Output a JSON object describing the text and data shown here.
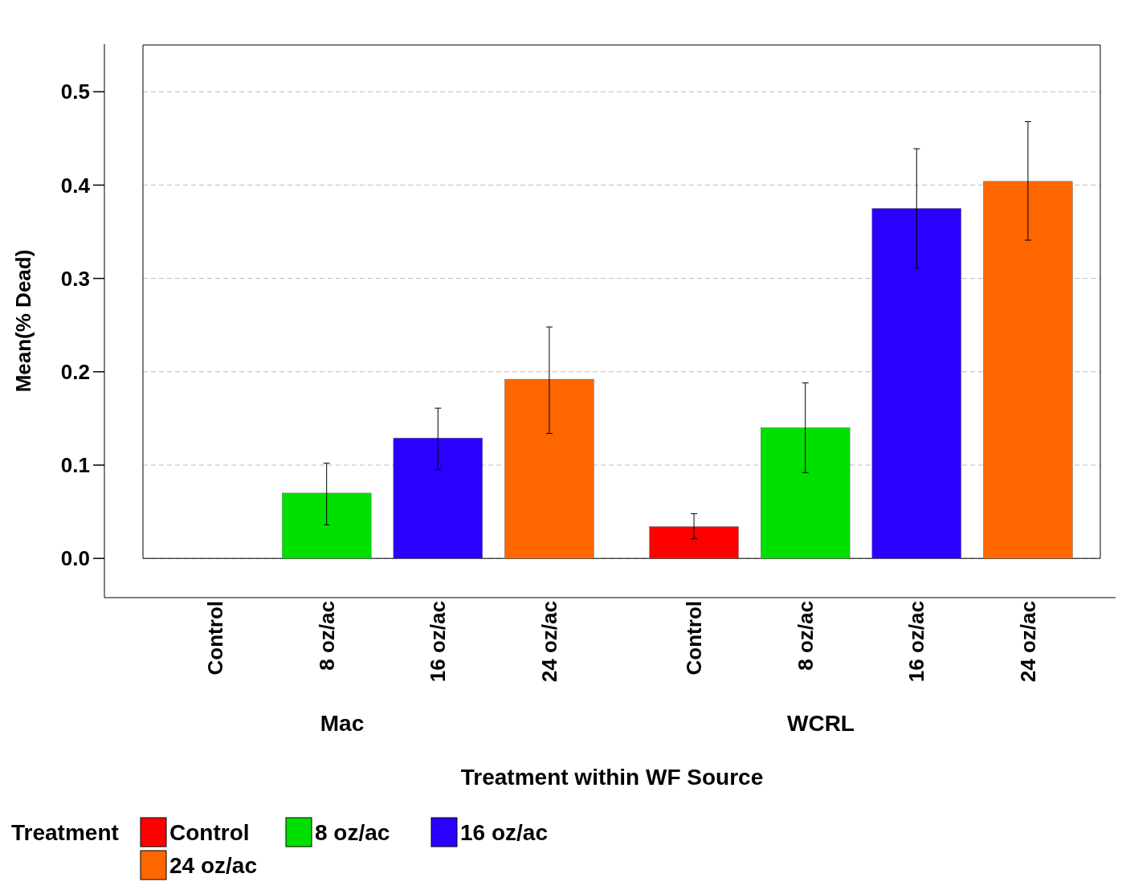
{
  "chart_data": {
    "type": "bar",
    "xlabel": "Treatment within WF Source",
    "ylabel": "Mean(% Dead)",
    "legend_title": "Treatment",
    "categories": [
      "Mac",
      "WCRL"
    ],
    "series": [
      {
        "name": "Control",
        "color": "#ff0000",
        "values": [
          0,
          0.034
        ],
        "errors": [
          null,
          [
            0.021,
            0.048
          ]
        ]
      },
      {
        "name": "8 oz/ac",
        "color": "#00e000",
        "values": [
          0.07,
          0.14
        ],
        "errors": [
          [
            0.036,
            0.102
          ],
          [
            0.092,
            0.188
          ]
        ]
      },
      {
        "name": "16 oz/ac",
        "color": "#2a00ff",
        "values": [
          0.129,
          0.375
        ],
        "errors": [
          [
            0.095,
            0.161
          ],
          [
            0.311,
            0.439
          ]
        ]
      },
      {
        "name": "24 oz/ac",
        "color": "#ff6600",
        "values": [
          0.192,
          0.404
        ],
        "errors": [
          [
            0.134,
            0.248
          ],
          [
            0.341,
            0.468
          ]
        ]
      }
    ],
    "ylim": [
      -0.042,
      0.551
    ],
    "yticks": [
      {
        "value": 0,
        "label": "0.0"
      },
      {
        "value": 0.1,
        "label": "0.1"
      },
      {
        "value": 0.2,
        "label": "0.2"
      },
      {
        "value": 0.3,
        "label": "0.3"
      },
      {
        "value": 0.4,
        "label": "0.4"
      },
      {
        "value": 0.5,
        "label": "0.5"
      }
    ],
    "grid": "y",
    "legend": "bottom left"
  }
}
